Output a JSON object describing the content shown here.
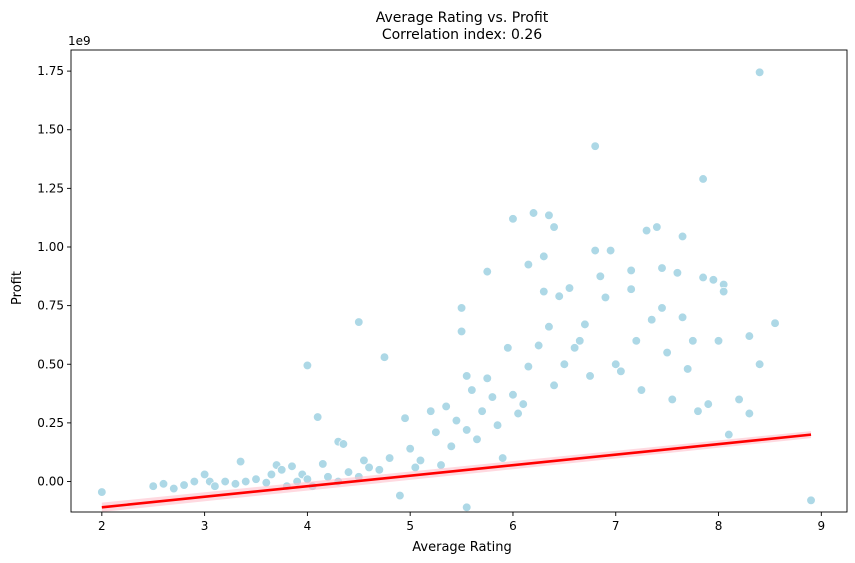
{
  "chart_data": {
    "type": "scatter",
    "title": "Average Rating vs. Profit",
    "subtitle": "Correlation index: 0.26",
    "xlabel": "Average Rating",
    "ylabel": "Profit",
    "y_offset_label": "1e9",
    "xlim": [
      1.7,
      9.25
    ],
    "ylim": [
      -0.13,
      1.84
    ],
    "x_ticks": [
      2,
      3,
      4,
      5,
      6,
      7,
      8,
      9
    ],
    "x_tick_labels": [
      "2",
      "3",
      "4",
      "5",
      "6",
      "7",
      "8",
      "9"
    ],
    "y_ticks": [
      0.0,
      0.25,
      0.5,
      0.75,
      1.0,
      1.25,
      1.5,
      1.75
    ],
    "y_tick_labels": [
      "0.00",
      "0.25",
      "0.50",
      "0.75",
      "1.00",
      "1.25",
      "1.50",
      "1.75"
    ],
    "grid": false,
    "point_color": "#add8e6",
    "regression": {
      "x": [
        2.0,
        8.9
      ],
      "y": [
        -0.11,
        0.2
      ],
      "ci_halfwidth": [
        0.02,
        0.015
      ],
      "line_color": "#ff0000",
      "band_color": "#ffc0cb"
    },
    "points": [
      [
        2.0,
        -0.045
      ],
      [
        2.5,
        -0.02
      ],
      [
        2.6,
        -0.01
      ],
      [
        2.7,
        -0.03
      ],
      [
        2.8,
        -0.015
      ],
      [
        2.9,
        0.0
      ],
      [
        3.0,
        0.03
      ],
      [
        3.05,
        0.0
      ],
      [
        3.1,
        -0.02
      ],
      [
        3.2,
        0.0
      ],
      [
        3.3,
        -0.01
      ],
      [
        3.35,
        0.085
      ],
      [
        3.4,
        0.0
      ],
      [
        3.5,
        0.01
      ],
      [
        3.6,
        -0.005
      ],
      [
        3.65,
        0.03
      ],
      [
        3.7,
        0.07
      ],
      [
        3.75,
        0.05
      ],
      [
        3.8,
        -0.02
      ],
      [
        3.85,
        0.065
      ],
      [
        3.9,
        0.0
      ],
      [
        3.95,
        0.03
      ],
      [
        4.0,
        0.495
      ],
      [
        4.0,
        0.01
      ],
      [
        4.05,
        -0.02
      ],
      [
        4.1,
        0.275
      ],
      [
        4.15,
        0.075
      ],
      [
        4.2,
        0.02
      ],
      [
        4.3,
        0.17
      ],
      [
        4.3,
        0.0
      ],
      [
        4.35,
        0.16
      ],
      [
        4.4,
        0.04
      ],
      [
        4.5,
        0.68
      ],
      [
        4.5,
        0.02
      ],
      [
        4.55,
        0.09
      ],
      [
        4.6,
        0.06
      ],
      [
        4.7,
        0.05
      ],
      [
        4.75,
        0.53
      ],
      [
        4.8,
        0.1
      ],
      [
        4.9,
        -0.06
      ],
      [
        4.95,
        0.27
      ],
      [
        5.0,
        0.14
      ],
      [
        5.05,
        0.06
      ],
      [
        5.1,
        0.09
      ],
      [
        5.2,
        0.3
      ],
      [
        5.25,
        0.21
      ],
      [
        5.3,
        0.07
      ],
      [
        5.35,
        0.32
      ],
      [
        5.4,
        0.15
      ],
      [
        5.45,
        0.26
      ],
      [
        5.5,
        0.74
      ],
      [
        5.5,
        0.64
      ],
      [
        5.55,
        0.45
      ],
      [
        5.55,
        0.22
      ],
      [
        5.55,
        -0.11
      ],
      [
        5.6,
        0.39
      ],
      [
        5.65,
        0.18
      ],
      [
        5.7,
        0.3
      ],
      [
        5.75,
        0.895
      ],
      [
        5.75,
        0.44
      ],
      [
        5.8,
        0.36
      ],
      [
        5.85,
        0.24
      ],
      [
        5.9,
        0.1
      ],
      [
        5.95,
        0.57
      ],
      [
        6.0,
        1.12
      ],
      [
        6.0,
        0.37
      ],
      [
        6.05,
        0.29
      ],
      [
        6.1,
        0.33
      ],
      [
        6.15,
        0.925
      ],
      [
        6.15,
        0.49
      ],
      [
        6.2,
        1.145
      ],
      [
        6.25,
        0.58
      ],
      [
        6.3,
        0.96
      ],
      [
        6.3,
        0.81
      ],
      [
        6.35,
        1.135
      ],
      [
        6.35,
        0.66
      ],
      [
        6.4,
        1.085
      ],
      [
        6.4,
        0.41
      ],
      [
        6.45,
        0.79
      ],
      [
        6.5,
        0.5
      ],
      [
        6.55,
        0.825
      ],
      [
        6.6,
        0.57
      ],
      [
        6.65,
        0.6
      ],
      [
        6.7,
        0.67
      ],
      [
        6.75,
        0.45
      ],
      [
        6.8,
        1.43
      ],
      [
        6.8,
        0.985
      ],
      [
        6.85,
        0.875
      ],
      [
        6.9,
        0.785
      ],
      [
        6.95,
        0.985
      ],
      [
        7.0,
        0.5
      ],
      [
        7.05,
        0.47
      ],
      [
        7.15,
        0.9
      ],
      [
        7.15,
        0.82
      ],
      [
        7.2,
        0.6
      ],
      [
        7.25,
        0.39
      ],
      [
        7.3,
        1.07
      ],
      [
        7.35,
        0.69
      ],
      [
        7.4,
        1.085
      ],
      [
        7.45,
        0.91
      ],
      [
        7.45,
        0.74
      ],
      [
        7.5,
        0.55
      ],
      [
        7.55,
        0.35
      ],
      [
        7.6,
        0.89
      ],
      [
        7.65,
        1.045
      ],
      [
        7.65,
        0.7
      ],
      [
        7.7,
        0.48
      ],
      [
        7.75,
        0.6
      ],
      [
        7.8,
        0.3
      ],
      [
        7.85,
        1.29
      ],
      [
        7.85,
        0.87
      ],
      [
        7.9,
        0.33
      ],
      [
        7.95,
        0.86
      ],
      [
        8.0,
        0.6
      ],
      [
        8.05,
        0.84
      ],
      [
        8.05,
        0.81
      ],
      [
        8.1,
        0.2
      ],
      [
        8.2,
        0.35
      ],
      [
        8.3,
        0.62
      ],
      [
        8.3,
        0.29
      ],
      [
        8.4,
        1.745
      ],
      [
        8.4,
        0.5
      ],
      [
        8.55,
        0.675
      ],
      [
        8.9,
        -0.08
      ]
    ]
  }
}
